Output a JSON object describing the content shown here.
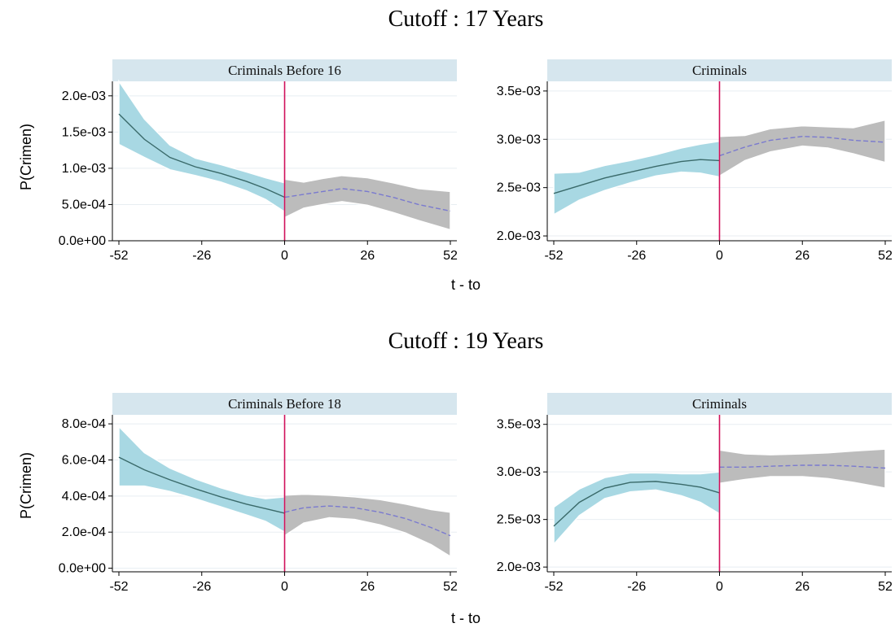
{
  "figure": {
    "ylabel": "P(Crimen)",
    "xlabel": "t - to",
    "colors": {
      "ci_before": "#a8d8e3",
      "ci_after": "#bcbcbc",
      "fit_before": "#3a6a6a",
      "fit_after": "#7a7acf",
      "cutoff_line": "#d0105a",
      "strip": "#d6e6ee",
      "grid": "#e8eef2",
      "band_edge": "#ffffff"
    }
  },
  "rows": [
    {
      "title": "Cutoff : 17 Years"
    },
    {
      "title": "Cutoff : 19 Years"
    }
  ],
  "chart_data": [
    {
      "type": "line",
      "row": 0,
      "col": 0,
      "strip_title": "Criminals Before 16",
      "xlabel": "t - to",
      "ylabel": "P(Crimen)",
      "xlim": [
        -52,
        52
      ],
      "ylim": [
        0.0,
        0.0022
      ],
      "xticks": [
        -52,
        -26,
        0,
        26,
        52
      ],
      "xtick_labels": [
        "-52",
        "-26",
        "0",
        "26",
        "52"
      ],
      "yticks": [
        0.0,
        0.0005,
        0.001,
        0.0015,
        0.002
      ],
      "ytick_labels": [
        "0.0e+00",
        "5.0e-04",
        "1.0e-03",
        "1.5e-03",
        "2.0e-03"
      ],
      "cutoff_x": 0,
      "grid": true,
      "before": {
        "x": [
          -52,
          -44,
          -36,
          -28,
          -20,
          -12,
          -6,
          0
        ],
        "fit": [
          0.00175,
          0.0014,
          0.00115,
          0.00102,
          0.00093,
          0.00082,
          0.00072,
          0.0006
        ],
        "lower": [
          0.00133,
          0.00115,
          0.00098,
          0.0009,
          0.00081,
          0.00069,
          0.00057,
          0.0004
        ],
        "upper": [
          0.0022,
          0.00168,
          0.00132,
          0.00114,
          0.00105,
          0.00095,
          0.00087,
          0.0008
        ]
      },
      "after": {
        "x": [
          0,
          6,
          12,
          18,
          26,
          34,
          42,
          52
        ],
        "fit": [
          0.0006,
          0.00064,
          0.00068,
          0.00072,
          0.00068,
          0.0006,
          0.0005,
          0.00041
        ],
        "lower": [
          0.00032,
          0.00045,
          0.0005,
          0.00054,
          0.00049,
          0.00039,
          0.00028,
          0.00015
        ],
        "upper": [
          0.00085,
          0.00081,
          0.00086,
          0.0009,
          0.00087,
          0.0008,
          0.00072,
          0.00068
        ]
      }
    },
    {
      "type": "line",
      "row": 0,
      "col": 1,
      "strip_title": "Criminals",
      "xlabel": "t - to",
      "ylabel": "",
      "xlim": [
        -52,
        52
      ],
      "ylim": [
        0.00195,
        0.0036
      ],
      "xticks": [
        -52,
        -26,
        0,
        26,
        52
      ],
      "xtick_labels": [
        "-52",
        "-26",
        "0",
        "26",
        "52"
      ],
      "yticks": [
        0.002,
        0.0025,
        0.003,
        0.0035
      ],
      "ytick_labels": [
        "2.0e-03",
        "2.5e-03",
        "3.0e-03",
        "3.5e-03"
      ],
      "cutoff_x": 0,
      "grid": true,
      "before": {
        "x": [
          -52,
          -44,
          -36,
          -28,
          -20,
          -12,
          -6,
          0
        ],
        "fit": [
          0.00244,
          0.00252,
          0.0026,
          0.00266,
          0.00272,
          0.00277,
          0.00279,
          0.00278
        ],
        "lower": [
          0.00222,
          0.00237,
          0.00247,
          0.00255,
          0.00262,
          0.00266,
          0.00265,
          0.00261
        ],
        "upper": [
          0.00265,
          0.00266,
          0.00273,
          0.00278,
          0.00284,
          0.00291,
          0.00295,
          0.00298
        ]
      },
      "after": {
        "x": [
          0,
          8,
          16,
          26,
          34,
          42,
          52
        ],
        "fit": [
          0.00283,
          0.00292,
          0.00299,
          0.00303,
          0.00302,
          0.00299,
          0.00297
        ],
        "lower": [
          0.00262,
          0.00278,
          0.00287,
          0.00293,
          0.00291,
          0.00285,
          0.00276
        ],
        "upper": [
          0.00303,
          0.00304,
          0.00311,
          0.00314,
          0.00313,
          0.00312,
          0.0032
        ]
      }
    },
    {
      "type": "line",
      "row": 1,
      "col": 0,
      "strip_title": "Criminals Before 18",
      "xlabel": "t - to",
      "ylabel": "P(Crimen)",
      "xlim": [
        -52,
        52
      ],
      "ylim": [
        -2e-05,
        0.00085
      ],
      "xticks": [
        -52,
        -26,
        0,
        26,
        52
      ],
      "xtick_labels": [
        "-52",
        "-26",
        "0",
        "26",
        "52"
      ],
      "yticks": [
        0.0,
        0.0002,
        0.0004,
        0.0006,
        0.0008
      ],
      "ytick_labels": [
        "0.0e+00",
        "2.0e-04",
        "4.0e-04",
        "6.0e-04",
        "8.0e-04"
      ],
      "cutoff_x": 0,
      "grid": true,
      "before": {
        "x": [
          -52,
          -44,
          -36,
          -28,
          -20,
          -12,
          -6,
          0
        ],
        "fit": [
          0.000615,
          0.000545,
          0.00049,
          0.00044,
          0.000395,
          0.000355,
          0.00033,
          0.000305
        ],
        "lower": [
          0.000455,
          0.000455,
          0.000425,
          0.000385,
          0.00034,
          0.000295,
          0.00026,
          0.0002
        ],
        "upper": [
          0.000785,
          0.00064,
          0.000555,
          0.000495,
          0.000445,
          0.000405,
          0.000385,
          0.000395
        ]
      },
      "after": {
        "x": [
          0,
          6,
          14,
          22,
          30,
          38,
          46,
          52
        ],
        "fit": [
          0.00031,
          0.000335,
          0.000345,
          0.000335,
          0.00031,
          0.000275,
          0.000225,
          0.00018
        ],
        "lower": [
          0.00018,
          0.00025,
          0.00028,
          0.00027,
          0.00024,
          0.000195,
          0.00013,
          6.5e-05
        ],
        "upper": [
          0.000405,
          0.00041,
          0.000405,
          0.000395,
          0.00038,
          0.000355,
          0.000325,
          0.00031
        ]
      }
    },
    {
      "type": "line",
      "row": 1,
      "col": 1,
      "strip_title": "Criminals",
      "xlabel": "t - to",
      "ylabel": "",
      "xlim": [
        -52,
        52
      ],
      "ylim": [
        0.00195,
        0.0036
      ],
      "xticks": [
        -52,
        -26,
        0,
        26,
        52
      ],
      "xtick_labels": [
        "-52",
        "-26",
        "0",
        "26",
        "52"
      ],
      "yticks": [
        0.002,
        0.0025,
        0.003,
        0.0035
      ],
      "ytick_labels": [
        "2.0e-03",
        "2.5e-03",
        "3.0e-03",
        "3.5e-03"
      ],
      "cutoff_x": 0,
      "grid": true,
      "before": {
        "x": [
          -52,
          -44,
          -36,
          -28,
          -20,
          -12,
          -6,
          0
        ],
        "fit": [
          0.00243,
          0.00268,
          0.00283,
          0.00289,
          0.0029,
          0.00287,
          0.00284,
          0.00278
        ],
        "lower": [
          0.00224,
          0.00254,
          0.00272,
          0.00279,
          0.00281,
          0.00275,
          0.00268,
          0.00256
        ],
        "upper": [
          0.00263,
          0.00282,
          0.00294,
          0.00299,
          0.00299,
          0.00298,
          0.00298,
          0.003
        ]
      },
      "after": {
        "x": [
          0,
          8,
          16,
          26,
          34,
          42,
          52
        ],
        "fit": [
          0.00305,
          0.00305,
          0.00306,
          0.00307,
          0.00307,
          0.00306,
          0.00304
        ],
        "lower": [
          0.00288,
          0.00292,
          0.00295,
          0.00295,
          0.00293,
          0.00289,
          0.00283
        ],
        "upper": [
          0.00323,
          0.00319,
          0.00318,
          0.00319,
          0.0032,
          0.00322,
          0.00324
        ]
      }
    }
  ]
}
